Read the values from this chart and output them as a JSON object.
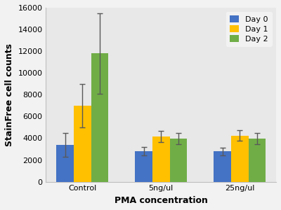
{
  "categories": [
    "Control",
    "5ng/ul",
    "25ng/ul"
  ],
  "series": [
    {
      "label": "Day 0",
      "color": "#4472C4",
      "values": [
        3400,
        2800,
        2800
      ],
      "errors": [
        1100,
        400,
        350
      ]
    },
    {
      "label": "Day 1",
      "color": "#FFC000",
      "values": [
        7000,
        4150,
        4250
      ],
      "errors": [
        2000,
        500,
        500
      ]
    },
    {
      "label": "Day 2",
      "color": "#70AD47",
      "values": [
        11800,
        3950,
        3950
      ],
      "errors": [
        3700,
        500,
        500
      ]
    }
  ],
  "xlabel": "PMA concentration",
  "ylabel": "StainFree cell counts",
  "ylim": [
    0,
    16000
  ],
  "yticks": [
    0,
    2000,
    4000,
    6000,
    8000,
    10000,
    12000,
    14000,
    16000
  ],
  "bar_width": 0.22,
  "legend_loc": "upper right",
  "axis_label_fontsize": 9,
  "tick_fontsize": 8,
  "legend_fontsize": 8,
  "plot_bg_color": "#e8e8e8",
  "fig_bg_color": "#f2f2f2",
  "error_color": "#595959",
  "spine_color": "#bfbfbf"
}
